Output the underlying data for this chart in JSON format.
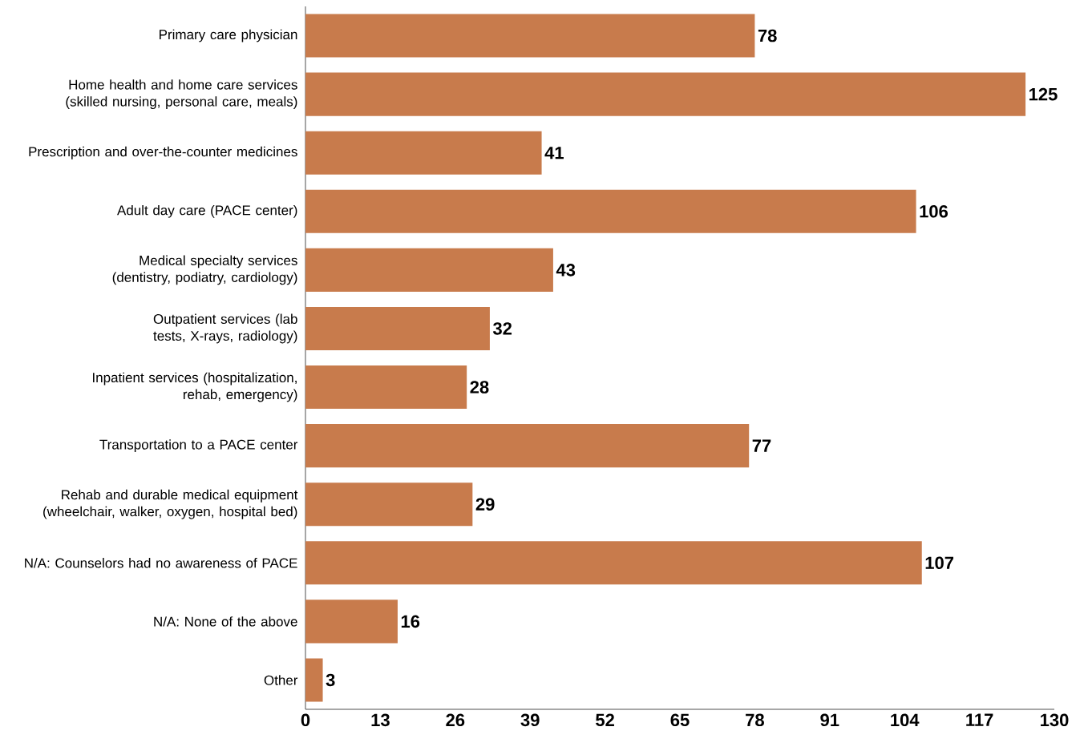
{
  "chart_data": {
    "type": "bar",
    "orientation": "horizontal",
    "categories": [
      "Primary care physician",
      "Home health and home care services (skilled nursing, personal care, meals)",
      "Prescription and over-the-counter medicines",
      "Adult day care (PACE center)",
      "Medical specialty services (dentistry, podiatry, cardiology)",
      "Outpatient services (lab tests, X-rays, radiology)",
      "Inpatient services (hospitalization, rehab, emergency)",
      "Transportation to a PACE center",
      "Rehab and durable medical equipment (wheelchair, walker, oxygen, hospital bed)",
      "N/A: Counselors had no awareness of PACE",
      "N/A: None of the above",
      "Other"
    ],
    "values": [
      78,
      125,
      41,
      106,
      43,
      32,
      28,
      77,
      29,
      107,
      16,
      3
    ],
    "color": "#c87b4c",
    "xlim": [
      0,
      130
    ],
    "xticks": [
      0,
      13,
      26,
      39,
      52,
      65,
      78,
      91,
      104,
      117,
      130
    ],
    "data_labels": true
  }
}
